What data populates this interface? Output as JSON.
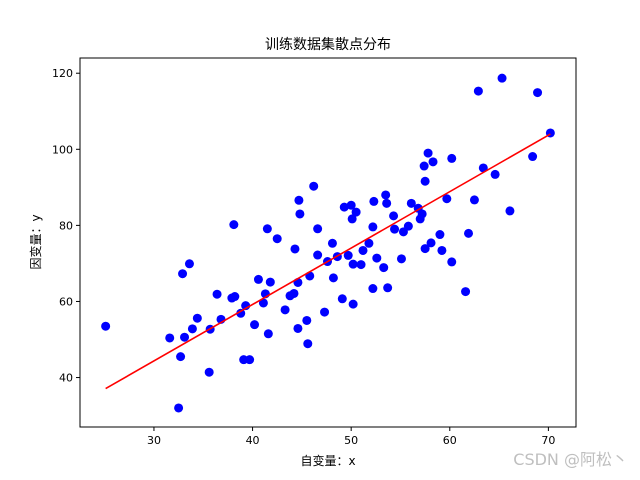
{
  "chart_data": {
    "type": "scatter",
    "title": "训练数据集散点分布",
    "xlabel": "自变量：x",
    "ylabel": "因变量：y",
    "xlim": [
      22.5,
      72.8
    ],
    "ylim": [
      27,
      124
    ],
    "xticks": [
      30,
      40,
      50,
      60,
      70
    ],
    "yticks": [
      40,
      60,
      80,
      100,
      120
    ],
    "grid": false,
    "colors": {
      "points": "#0000ff",
      "line": "#ff0000"
    },
    "series": [
      {
        "kind": "points",
        "points": [
          [
            25.1,
            53.5
          ],
          [
            31.6,
            50.4
          ],
          [
            32.5,
            32.0
          ],
          [
            32.7,
            45.5
          ],
          [
            32.9,
            67.3
          ],
          [
            33.1,
            50.6
          ],
          [
            33.6,
            69.9
          ],
          [
            33.9,
            52.8
          ],
          [
            34.4,
            55.6
          ],
          [
            35.6,
            41.4
          ],
          [
            35.7,
            52.7
          ],
          [
            36.4,
            61.9
          ],
          [
            36.8,
            55.3
          ],
          [
            37.9,
            60.9
          ],
          [
            38.2,
            61.3
          ],
          [
            38.1,
            80.2
          ],
          [
            38.8,
            56.9
          ],
          [
            39.1,
            44.7
          ],
          [
            39.3,
            58.9
          ],
          [
            39.7,
            44.7
          ],
          [
            40.2,
            53.9
          ],
          [
            40.6,
            65.8
          ],
          [
            41.1,
            59.6
          ],
          [
            41.3,
            62.0
          ],
          [
            41.5,
            79.1
          ],
          [
            41.6,
            51.5
          ],
          [
            41.8,
            65.1
          ],
          [
            42.5,
            76.5
          ],
          [
            43.3,
            57.8
          ],
          [
            43.8,
            61.5
          ],
          [
            44.2,
            62.1
          ],
          [
            44.3,
            73.8
          ],
          [
            44.6,
            65.0
          ],
          [
            44.6,
            52.9
          ],
          [
            44.7,
            86.6
          ],
          [
            44.8,
            83.0
          ],
          [
            45.5,
            55.0
          ],
          [
            45.6,
            48.9
          ],
          [
            45.8,
            66.7
          ],
          [
            46.2,
            90.3
          ],
          [
            46.6,
            72.2
          ],
          [
            46.6,
            79.1
          ],
          [
            47.3,
            57.2
          ],
          [
            47.6,
            70.5
          ],
          [
            48.1,
            75.3
          ],
          [
            48.2,
            66.2
          ],
          [
            48.6,
            71.8
          ],
          [
            49.1,
            60.7
          ],
          [
            49.3,
            84.8
          ],
          [
            49.7,
            72.1
          ],
          [
            50.0,
            85.3
          ],
          [
            50.1,
            81.7
          ],
          [
            50.2,
            59.3
          ],
          [
            50.2,
            69.8
          ],
          [
            50.5,
            83.5
          ],
          [
            51.0,
            69.7
          ],
          [
            51.2,
            73.4
          ],
          [
            51.8,
            75.3
          ],
          [
            52.2,
            63.4
          ],
          [
            52.2,
            79.6
          ],
          [
            52.3,
            86.3
          ],
          [
            52.6,
            71.4
          ],
          [
            53.3,
            68.9
          ],
          [
            53.5,
            88.0
          ],
          [
            53.6,
            85.8
          ],
          [
            53.7,
            63.6
          ],
          [
            54.3,
            82.5
          ],
          [
            54.4,
            79.0
          ],
          [
            55.1,
            71.2
          ],
          [
            55.3,
            78.3
          ],
          [
            55.8,
            79.8
          ],
          [
            56.1,
            85.8
          ],
          [
            56.8,
            84.5
          ],
          [
            57.0,
            81.7
          ],
          [
            57.2,
            83.0
          ],
          [
            57.4,
            95.6
          ],
          [
            57.5,
            91.6
          ],
          [
            57.5,
            73.9
          ],
          [
            57.8,
            99.0
          ],
          [
            58.3,
            96.7
          ],
          [
            58.1,
            75.4
          ],
          [
            59.0,
            77.6
          ],
          [
            59.2,
            73.4
          ],
          [
            59.7,
            87.0
          ],
          [
            60.2,
            97.6
          ],
          [
            60.2,
            70.4
          ],
          [
            61.6,
            62.6
          ],
          [
            61.9,
            77.9
          ],
          [
            62.5,
            86.7
          ],
          [
            62.9,
            115.3
          ],
          [
            63.4,
            95.1
          ],
          [
            64.6,
            93.4
          ],
          [
            65.3,
            118.7
          ],
          [
            66.1,
            83.8
          ],
          [
            68.4,
            98.1
          ],
          [
            68.9,
            114.9
          ],
          [
            70.2,
            104.3
          ]
        ]
      },
      {
        "kind": "line",
        "x": [
          25.1,
          70.2
        ],
        "y": [
          37.1,
          104.0
        ]
      }
    ]
  },
  "watermark": "CSDN @阿松丶"
}
